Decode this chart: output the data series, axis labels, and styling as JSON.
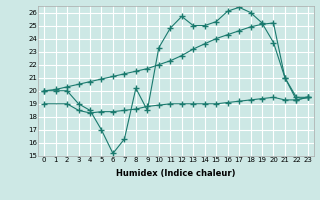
{
  "xlabel": "Humidex (Indice chaleur)",
  "xlim": [
    -0.5,
    23.5
  ],
  "ylim": [
    15,
    26.5
  ],
  "yticks": [
    15,
    16,
    17,
    18,
    19,
    20,
    21,
    22,
    23,
    24,
    25,
    26
  ],
  "xticks": [
    0,
    1,
    2,
    3,
    4,
    5,
    6,
    7,
    8,
    9,
    10,
    11,
    12,
    13,
    14,
    15,
    16,
    17,
    18,
    19,
    20,
    21,
    22,
    23
  ],
  "bg_color": "#cde8e5",
  "grid_color": "#ffffff",
  "line_color": "#1a7a6e",
  "line1_x": [
    0,
    1,
    2,
    3,
    4,
    5,
    6,
    7,
    8,
    9,
    10,
    11,
    12,
    13,
    14,
    15,
    16,
    17,
    18,
    19,
    20,
    21,
    22,
    23
  ],
  "line1_y": [
    20.0,
    20.0,
    20.0,
    19.0,
    18.5,
    17.0,
    15.2,
    16.3,
    20.2,
    18.5,
    23.3,
    24.8,
    25.7,
    25.0,
    25.0,
    25.3,
    26.1,
    26.4,
    26.0,
    25.2,
    23.7,
    21.0,
    19.3,
    19.5
  ],
  "line2_x": [
    0,
    1,
    2,
    3,
    4,
    5,
    6,
    7,
    8,
    9,
    10,
    11,
    12,
    13,
    14,
    15,
    16,
    17,
    18,
    19,
    20,
    21,
    22,
    23
  ],
  "line2_y": [
    20.0,
    20.1,
    20.3,
    20.5,
    20.7,
    20.9,
    21.1,
    21.3,
    21.5,
    21.7,
    22.0,
    22.3,
    22.7,
    23.2,
    23.6,
    24.0,
    24.3,
    24.6,
    24.9,
    25.1,
    25.2,
    21.0,
    19.5,
    19.5
  ],
  "line3_x": [
    0,
    2,
    3,
    4,
    5,
    6,
    7,
    8,
    9,
    10,
    11,
    12,
    13,
    14,
    15,
    16,
    17,
    18,
    19,
    20,
    21,
    22,
    23
  ],
  "line3_y": [
    19.0,
    19.0,
    18.5,
    18.3,
    18.4,
    18.4,
    18.5,
    18.6,
    18.8,
    18.9,
    19.0,
    19.0,
    19.0,
    19.0,
    19.0,
    19.1,
    19.2,
    19.3,
    19.4,
    19.5,
    19.3,
    19.3,
    19.5
  ]
}
